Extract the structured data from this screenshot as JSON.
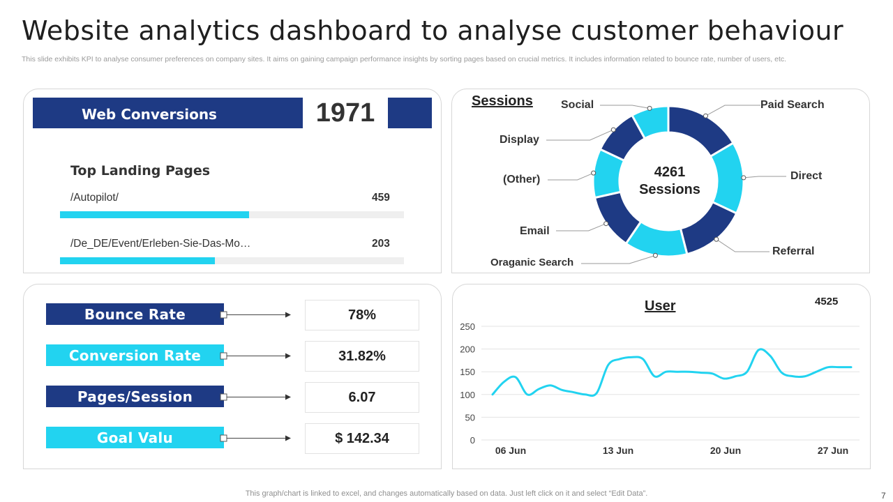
{
  "header": {
    "title": "Website analytics dashboard to analyse customer behaviour",
    "subtitle": "This slide exhibits KPI to analyse consumer preferences on company sites. It aims on gaining campaign performance insights by sorting pages based on crucial metrics. It includes information related to bounce rate, number of users, etc."
  },
  "web_conversions": {
    "label": "Web Conversions",
    "value": "1971",
    "landing_title": "Top Landing Pages",
    "pages": [
      {
        "name": "/Autopilot/",
        "value": "459",
        "fraction": 0.55
      },
      {
        "name": "/De_DE/Event/Erleben-Sie-Das-Mo…",
        "value": "203",
        "fraction": 0.45
      }
    ]
  },
  "kpis": [
    {
      "label": "Bounce Rate",
      "value": "78%",
      "style": "dark"
    },
    {
      "label": "Conversion Rate",
      "value": "31.82%",
      "style": "light"
    },
    {
      "label": "Pages/Session",
      "value": "6.07",
      "style": "dark"
    },
    {
      "label": "Goal Valu",
      "value": "$ 142.34",
      "style": "light"
    }
  ],
  "sessions": {
    "title": "Sessions",
    "center_value": "4261",
    "center_label": "Sessions",
    "colors": {
      "dark": "#1e3a84",
      "light": "#22d3f0"
    },
    "segments": [
      {
        "name": "Paid Search",
        "value": 16.5,
        "color": "dark"
      },
      {
        "name": "Direct",
        "value": 15.5,
        "color": "light"
      },
      {
        "name": "Referral",
        "value": 14,
        "color": "dark"
      },
      {
        "name": "Oraganic Search",
        "value": 13.5,
        "color": "light"
      },
      {
        "name": "Email",
        "value": 12,
        "color": "dark"
      },
      {
        "name": "(Other)",
        "value": 10.5,
        "color": "light"
      },
      {
        "name": "Display",
        "value": 10,
        "color": "dark"
      },
      {
        "name": "Social",
        "value": 8,
        "color": "light"
      }
    ]
  },
  "user_chart": {
    "title": "User",
    "total": "4525"
  },
  "chart_data": {
    "type": "line",
    "title": "User",
    "xlabel": "",
    "ylabel": "",
    "ylim": [
      0,
      250
    ],
    "yticks": [
      "0",
      "50",
      "100",
      "150",
      "200",
      "250"
    ],
    "xtick_labels": [
      "06 Jun",
      "13 Jun",
      "20 Jun",
      "27 Jun"
    ],
    "grid": true,
    "series": [
      {
        "name": "User",
        "color": "#22d3f0",
        "x": [
          0,
          1,
          2,
          3,
          4,
          5,
          6,
          7,
          8,
          9,
          10,
          11,
          12,
          13,
          14,
          15,
          16,
          17,
          18,
          19,
          20,
          21,
          22,
          23,
          24,
          25,
          26,
          27,
          28,
          29,
          30,
          31
        ],
        "values": [
          100,
          128,
          138,
          100,
          112,
          120,
          110,
          105,
          100,
          103,
          165,
          178,
          182,
          178,
          140,
          150,
          150,
          150,
          148,
          146,
          135,
          140,
          150,
          198,
          185,
          148,
          140,
          140,
          150,
          160,
          160,
          160
        ]
      }
    ]
  },
  "footer": {
    "note": "This graph/chart is linked to excel, and changes automatically based on data. Just left click on it and select “Edit Data”.",
    "page_number": "7"
  }
}
